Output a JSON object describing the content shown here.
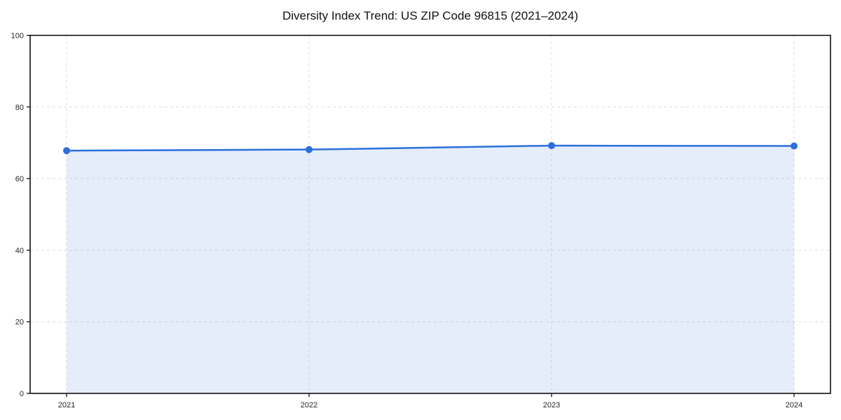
{
  "chart_data": {
    "type": "area",
    "title": "Diversity Index Trend: US ZIP Code 96815 (2021–2024)",
    "categories": [
      "2021",
      "2022",
      "2023",
      "2024"
    ],
    "series": [
      {
        "name": "Diversity Index",
        "values": [
          67.8,
          68.1,
          69.2,
          69.1
        ]
      }
    ],
    "xlabel": "",
    "ylabel": "",
    "ylim": [
      0,
      100
    ],
    "y_ticks": [
      0,
      20,
      40,
      60,
      80,
      100
    ],
    "grid": true,
    "grid_style": "dashed",
    "legend_position": "none",
    "line_color": "#2a6fdb",
    "marker_color": "#2a6fdb",
    "fill_color": "#2a6fdb",
    "fill_opacity": 0.12,
    "grid_color": "#dedede",
    "spine_color": "#000000",
    "tick_label_color": "#262626"
  }
}
